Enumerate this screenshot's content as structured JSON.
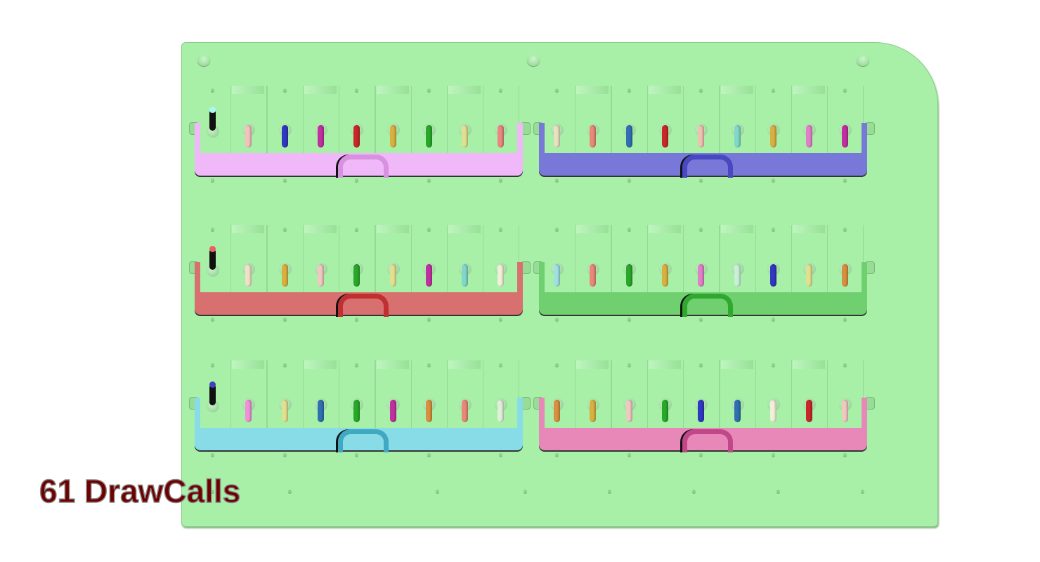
{
  "overlay": {
    "drawcalls_text": "61 DrawCalls",
    "color": "#6e0000"
  },
  "board": {
    "color": "#a8f0a8"
  },
  "trays": [
    {
      "color": "#f0b8f8",
      "handle_color": "#d890e0",
      "lead_cap_color": "#a8f8f8",
      "levers": [
        "#f4c0c0",
        "#3038c0",
        "#c030a0",
        "#c82828",
        "#d8b040",
        "#28a828",
        "#e0e090",
        "#e88880"
      ]
    },
    {
      "color": "#7878d8",
      "handle_color": "#4848c0",
      "lead_cap_color": null,
      "levers": [
        "#e8e0c0",
        "#e88878",
        "#3070b0",
        "#c82828",
        "#f0c0b0",
        "#80d8c8",
        "#d8b040",
        "#e080c8",
        "#c030a0"
      ]
    },
    {
      "color": "#d87070",
      "handle_color": "#c03030",
      "lead_cap_color": "#e86060",
      "levers": [
        "#f0e0c8",
        "#d8b040",
        "#f0c8c0",
        "#28a828",
        "#e0e090",
        "#c030a0",
        "#80d8c8",
        "#f0f0d8"
      ]
    },
    {
      "color": "#70d070",
      "handle_color": "#30a830",
      "lead_cap_color": null,
      "levers": [
        "#a0e0e0",
        "#e88878",
        "#28a828",
        "#d8b040",
        "#e080c8",
        "#c8f0d8",
        "#3038c0",
        "#e0e090",
        "#d89040"
      ]
    },
    {
      "color": "#88dce8",
      "handle_color": "#40a8c0",
      "lead_cap_color": "#4040c0",
      "levers": [
        "#f090d8",
        "#e0e090",
        "#3070b0",
        "#28a828",
        "#c030a0",
        "#d89040",
        "#e88878",
        "#e0f0d8"
      ]
    },
    {
      "color": "#e888b8",
      "handle_color": "#c04888",
      "lead_cap_color": null,
      "levers": [
        "#d89040",
        "#d8b040",
        "#f0c8c0",
        "#28a828",
        "#3038c0",
        "#3070b0",
        "#f0f0d8",
        "#c82828",
        "#f0c8c0"
      ]
    }
  ]
}
